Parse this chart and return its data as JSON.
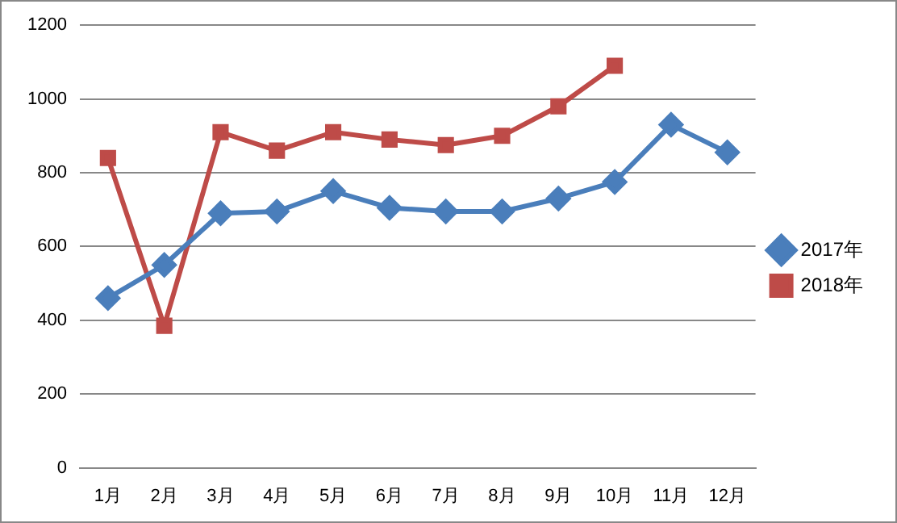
{
  "chart_data": {
    "type": "line",
    "categories": [
      "1月",
      "2月",
      "3月",
      "4月",
      "5月",
      "6月",
      "7月",
      "8月",
      "9月",
      "10月",
      "11月",
      "12月"
    ],
    "series": [
      {
        "name": "2017年",
        "color": "#4a7ebb",
        "marker": "diamond",
        "values": [
          460,
          550,
          690,
          695,
          750,
          705,
          695,
          695,
          730,
          775,
          930,
          855
        ]
      },
      {
        "name": "2018年",
        "color": "#be4b48",
        "marker": "square",
        "values": [
          840,
          385,
          910,
          860,
          910,
          890,
          875,
          900,
          980,
          1090,
          null,
          null
        ]
      }
    ],
    "ylim": [
      0,
      1200
    ],
    "yticks": [
      0,
      200,
      400,
      600,
      800,
      1000,
      1200
    ],
    "grid": "y",
    "legend": "right",
    "line_style": "solid"
  }
}
